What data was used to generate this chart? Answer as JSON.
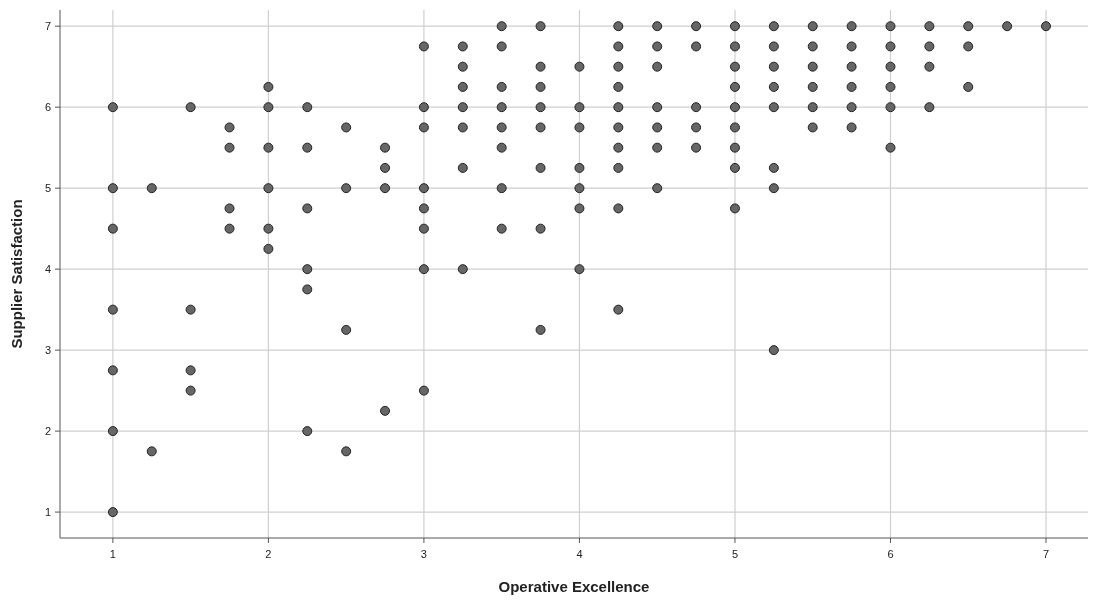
{
  "chart_data": {
    "type": "scatter",
    "xlabel": "Operative Excellence",
    "ylabel": "Supplier Satisfaction",
    "xlim": [
      0.66,
      7.27
    ],
    "ylim": [
      0.68,
      7.2
    ],
    "xticks": [
      1,
      2,
      3,
      4,
      5,
      6,
      7
    ],
    "yticks": [
      1,
      2,
      3,
      4,
      5,
      6,
      7
    ],
    "grid": true,
    "marker": "circle",
    "series": [
      {
        "color": "#666666",
        "x": [
          1,
          1,
          1,
          1,
          1,
          1,
          1,
          1.25,
          1.25,
          1.5,
          1.5,
          1.5,
          1.5,
          1.75,
          1.75,
          1.75,
          1.75,
          2,
          2,
          2,
          2,
          2,
          2,
          2.25,
          2.25,
          2.25,
          2.25,
          2.25,
          2.25,
          2.5,
          2.5,
          2.5,
          2.5,
          2.75,
          2.75,
          2.75,
          2.75,
          3,
          3,
          3,
          3,
          3,
          3,
          3,
          3,
          3.25,
          3.25,
          3.25,
          3.25,
          3.25,
          3.25,
          3.25,
          3.5,
          3.5,
          3.5,
          3.5,
          3.5,
          3.5,
          3.5,
          3.5,
          3.75,
          3.75,
          3.75,
          3.75,
          3.75,
          3.75,
          3.75,
          3.75,
          4,
          4,
          4,
          4,
          4,
          4,
          4,
          4.25,
          4.25,
          4.25,
          4.25,
          4.25,
          4.25,
          4.25,
          4.25,
          4.25,
          4.25,
          4.5,
          4.5,
          4.5,
          4.5,
          4.5,
          4.5,
          4.5,
          4.75,
          4.75,
          4.75,
          4.75,
          4.75,
          5,
          5,
          5,
          5,
          5,
          5,
          5,
          5,
          5,
          5.25,
          5.25,
          5.25,
          5.25,
          5.25,
          5.25,
          5.25,
          5.25,
          5.5,
          5.5,
          5.5,
          5.5,
          5.5,
          5.5,
          5.75,
          5.75,
          5.75,
          5.75,
          5.75,
          5.75,
          6,
          6,
          6,
          6,
          6,
          6,
          6.25,
          6.25,
          6.25,
          6.25,
          6.5,
          6.5,
          6.5,
          6.75,
          7
        ],
        "values": [
          6,
          5,
          4.5,
          3.5,
          2.75,
          2,
          1,
          5,
          1.75,
          6,
          3.5,
          2.75,
          2.5,
          5.75,
          5.5,
          4.75,
          4.5,
          6.25,
          6,
          5.5,
          5,
          4.5,
          4.25,
          6,
          5.5,
          4.75,
          4,
          3.75,
          2,
          5.75,
          5,
          3.25,
          1.75,
          5.5,
          5.25,
          5,
          2.25,
          6.75,
          6,
          5.75,
          5,
          4.75,
          4.5,
          4,
          2.5,
          6.75,
          6.5,
          6.25,
          6,
          5.75,
          5.25,
          4,
          7,
          6.75,
          6.25,
          6,
          5.75,
          5.5,
          5,
          4.5,
          7,
          6.5,
          6.25,
          6,
          5.75,
          5.25,
          4.5,
          3.25,
          6.5,
          6,
          5.75,
          5.25,
          5,
          4.75,
          4,
          7,
          6.75,
          6.5,
          6.25,
          6,
          5.75,
          5.5,
          5.25,
          4.75,
          3.5,
          7,
          6.75,
          6.5,
          6,
          5.75,
          5.5,
          5,
          7,
          6.75,
          6,
          5.75,
          5.5,
          7,
          6.75,
          6.5,
          6.25,
          6,
          5.75,
          5.5,
          5.25,
          4.75,
          7,
          6.75,
          6.5,
          6.25,
          6,
          5.25,
          5,
          3,
          7,
          6.75,
          6.5,
          6.25,
          6,
          5.75,
          7,
          6.75,
          6.5,
          6.25,
          6,
          5.75,
          7,
          6.75,
          6.5,
          6.25,
          6,
          5.5,
          7,
          6.75,
          6.5,
          6,
          7,
          6.75,
          6.25,
          7,
          7
        ]
      }
    ]
  }
}
